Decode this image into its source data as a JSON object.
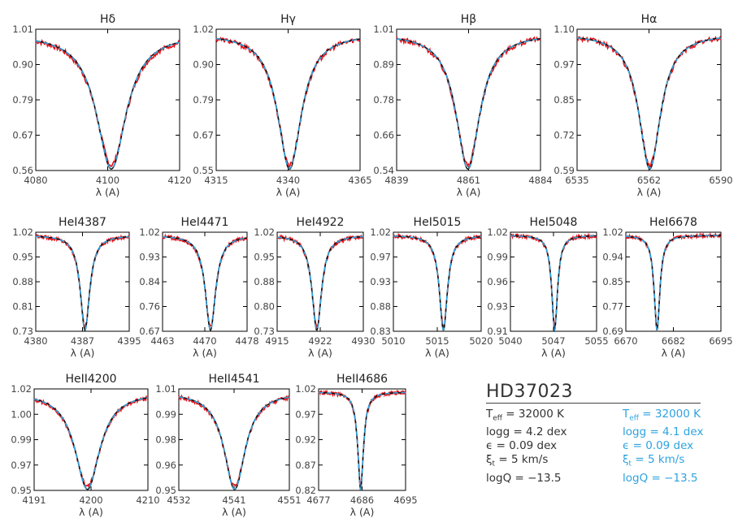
{
  "colors": {
    "observed": "#e3141b",
    "model_black": "#111111",
    "model_blue": "#2ea3df"
  },
  "chart_data": [
    {
      "type": "line",
      "title": "Hδ",
      "xlabel": "λ (A)",
      "xlim": [
        4080,
        4120
      ],
      "ylim": [
        0.56,
        1.01
      ],
      "xticks": [
        "4080",
        "4100",
        "4120"
      ],
      "yticks": [
        "1.01",
        "0.90",
        "0.79",
        "0.67",
        "0.56"
      ],
      "line_center": 4101,
      "depth": 0.45,
      "width": 5
    },
    {
      "type": "line",
      "title": "Hγ",
      "xlabel": "λ (A)",
      "xlim": [
        4315,
        4365
      ],
      "ylim": [
        0.55,
        1.02
      ],
      "xticks": [
        "4315",
        "4340",
        "4365"
      ],
      "yticks": [
        "1.02",
        "0.90",
        "0.79",
        "0.67",
        "0.55"
      ],
      "line_center": 4340.5,
      "depth": 0.46,
      "width": 5
    },
    {
      "type": "line",
      "title": "Hβ",
      "xlabel": "λ (A)",
      "xlim": [
        4839,
        4884
      ],
      "ylim": [
        0.54,
        1.01
      ],
      "xticks": [
        "4839",
        "4861",
        "4884"
      ],
      "yticks": [
        "1.01",
        "0.89",
        "0.78",
        "0.66",
        "0.54"
      ],
      "line_center": 4861.3,
      "depth": 0.46,
      "width": 4.5
    },
    {
      "type": "line",
      "title": "Hα",
      "xlabel": "λ (A)",
      "xlim": [
        6535,
        6590
      ],
      "ylim": [
        0.59,
        1.1
      ],
      "xticks": [
        "6535",
        "6562",
        "6590"
      ],
      "yticks": [
        "1.10",
        "0.97",
        "0.85",
        "0.72",
        "0.59"
      ],
      "line_center": 6562.8,
      "depth": 0.38,
      "width": 5
    },
    {
      "type": "line",
      "title": "HeI4387",
      "xlabel": "λ (A)",
      "xlim": [
        4380,
        4395
      ],
      "ylim": [
        0.73,
        1.02
      ],
      "xticks": [
        "4380",
        "4387",
        "4395"
      ],
      "yticks": [
        "1.02",
        "0.95",
        "0.88",
        "0.81",
        "0.73"
      ],
      "line_center": 4387.9,
      "depth": 0.27,
      "width": 0.9
    },
    {
      "type": "line",
      "title": "HeI4471",
      "xlabel": "λ (A)",
      "xlim": [
        4463,
        4478
      ],
      "ylim": [
        0.67,
        1.02
      ],
      "xticks": [
        "4463",
        "4470",
        "4478"
      ],
      "yticks": [
        "1.02",
        "0.93",
        "0.84",
        "0.76",
        "0.67"
      ],
      "line_center": 4471.5,
      "depth": 0.33,
      "width": 1.1
    },
    {
      "type": "line",
      "title": "HeI4922",
      "xlabel": "λ (A)",
      "xlim": [
        4915,
        4930
      ],
      "ylim": [
        0.73,
        1.02
      ],
      "xticks": [
        "4915",
        "4922",
        "4930"
      ],
      "yticks": [
        "1.02",
        "0.95",
        "0.88",
        "0.80",
        "0.73"
      ],
      "line_center": 4921.9,
      "depth": 0.28,
      "width": 1.0
    },
    {
      "type": "line",
      "title": "HeI5015",
      "xlabel": "λ (A)",
      "xlim": [
        5010,
        5020
      ],
      "ylim": [
        0.83,
        1.02
      ],
      "xticks": [
        "5010",
        "5015",
        "5020"
      ],
      "yticks": [
        "1.02",
        "0.97",
        "0.93",
        "0.88",
        "0.83"
      ],
      "line_center": 5015.7,
      "depth": 0.18,
      "width": 0.55
    },
    {
      "type": "line",
      "title": "HeI5048",
      "xlabel": "λ (A)",
      "xlim": [
        5040,
        5055
      ],
      "ylim": [
        0.91,
        1.02
      ],
      "xticks": [
        "5040",
        "5047",
        "5055"
      ],
      "yticks": [
        "1.02",
        "0.99",
        "0.96",
        "0.93",
        "0.91"
      ],
      "line_center": 5047.7,
      "depth": 0.09,
      "width": 0.6
    },
    {
      "type": "line",
      "title": "HeI6678",
      "xlabel": "λ (A)",
      "xlim": [
        6670,
        6695
      ],
      "ylim": [
        0.69,
        1.02
      ],
      "xticks": [
        "6670",
        "6682",
        "6695"
      ],
      "yticks": [
        "1.02",
        "0.94",
        "0.85",
        "0.77",
        "0.69"
      ],
      "line_center": 6678.2,
      "depth": 0.32,
      "width": 0.9
    },
    {
      "type": "line",
      "title": "HeII4200",
      "xlabel": "λ (A)",
      "xlim": [
        4191,
        4210
      ],
      "ylim": [
        0.95,
        1.02
      ],
      "xticks": [
        "4191",
        "4200",
        "4210"
      ],
      "yticks": [
        "1.02",
        "1.00",
        "0.99",
        "0.97",
        "0.95"
      ],
      "line_center": 4199.9,
      "depth": 0.02,
      "width": 2.5
    },
    {
      "type": "line",
      "title": "HeII4541",
      "xlabel": "λ (A)",
      "xlim": [
        4532,
        4551
      ],
      "ylim": [
        0.95,
        1.01
      ],
      "xticks": [
        "4532",
        "4541",
        "4551"
      ],
      "yticks": [
        "1.01",
        "0.99",
        "0.98",
        "0.96",
        "0.95"
      ],
      "line_center": 4541.6,
      "depth": 0.025,
      "width": 2.2
    },
    {
      "type": "line",
      "title": "HeII4686",
      "xlabel": "λ (A)",
      "xlim": [
        4677,
        4695
      ],
      "ylim": [
        0.82,
        1.02
      ],
      "xticks": [
        "4677",
        "4686",
        "4695"
      ],
      "yticks": [
        "1.02",
        "0.97",
        "0.92",
        "0.87",
        "0.82"
      ],
      "line_center": 4685.7,
      "depth": 0.18,
      "width": 0.7
    }
  ],
  "legend": {
    "star": "HD37023",
    "model_a": {
      "teff_label": "T",
      "teff_sub": "eff",
      "teff_value": " = 32000 K",
      "logg": "logg = 4.2 dex",
      "eps": "ϵ = 0.09 dex",
      "xi_label": "ξ",
      "xi_sub": "t",
      "xi_value": " = 5 km/s",
      "logq": "logQ = −13.5"
    },
    "model_b": {
      "teff_label": "T",
      "teff_sub": "eff",
      "teff_value": " = 32000 K",
      "logg": "logg = 4.1 dex",
      "eps": "ϵ = 0.09 dex",
      "xi_label": "ξ",
      "xi_sub": "t",
      "xi_value": " = 5 km/s",
      "logq": "logQ = −13.5"
    }
  }
}
